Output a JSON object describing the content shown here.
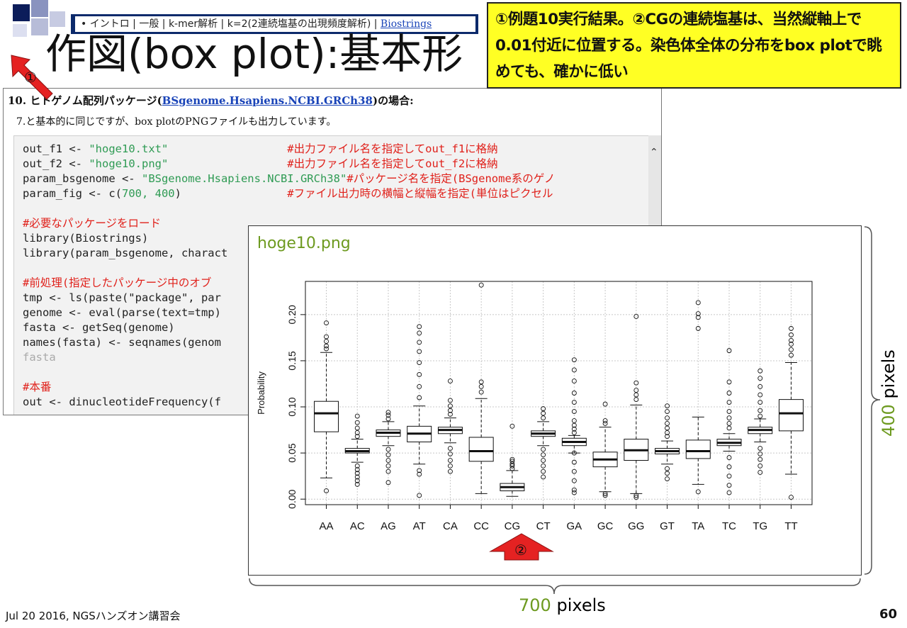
{
  "nav": {
    "items_text": "• イントロ | 一般 | k-mer解析 | k=2(2連続塩基の出現頻度解析) | ",
    "link_text": "Biostrings"
  },
  "slide_title": "作図(box plot):基本形",
  "callout_text": "①例題10実行結果。②CGの連続塩基は、当然縦軸上で0.01付近に位置する。染色体全体の分布をbox plotで眺めても、確かに低い",
  "doc": {
    "heading_prefix": "10. ヒトゲノム配列パッケージ(",
    "heading_link": "BSgenome.Hsapiens.NCBI.GRCh38",
    "heading_suffix": ")の場合:",
    "description": "7.と基本的に同じですが、box plotのPNGファイルも出力しています。",
    "code_lines": [
      [
        "out_f1 <- ",
        "\"hoge10.txt\"",
        "                  #出力ファイル名を指定してout_f1に格納"
      ],
      [
        "out_f2 <- ",
        "\"hoge10.png\"",
        "                  #出力ファイル名を指定してout_f2に格納"
      ],
      [
        "param_bsgenome <- ",
        "\"BSgenome.Hsapiens.NCBI.GRCh38\"",
        "#パッケージ名を指定(BSgenome系のゲノ"
      ],
      [
        "param_fig <- c(",
        "700, 400",
        ")                #ファイル出力時の横幅と縦幅を指定(単位はピクセル"
      ],
      [
        "",
        "",
        ""
      ],
      [
        "",
        "",
        "#必要なパッケージをロード"
      ],
      [
        "library(Biostrings)",
        "",
        ""
      ],
      [
        "library(param_bsgenome, charact",
        "",
        ""
      ],
      [
        "",
        "",
        ""
      ],
      [
        "",
        "",
        "#前処理(指定したパッケージ中のオブ"
      ],
      [
        "tmp <- ls(paste(\"package\", par",
        "",
        ""
      ],
      [
        "genome <- eval(parse(text=tmp)",
        "",
        ""
      ],
      [
        "fasta <- getSeq(genome)",
        "",
        ""
      ],
      [
        "names(fasta) <- seqnames(genom",
        "",
        ""
      ],
      [
        "fasta",
        "",
        ""
      ],
      [
        "",
        "",
        ""
      ],
      [
        "",
        "",
        "#本番"
      ],
      [
        "out <- dinucleotideFrequency(f",
        "",
        ""
      ]
    ]
  },
  "chart_filename": "hoge10.png",
  "chart_data": {
    "type": "box",
    "ylabel": "Probability",
    "ylim": [
      -0.006,
      0.236
    ],
    "yticks": [
      0.0,
      0.05,
      0.1,
      0.15,
      0.2
    ],
    "ytick_labels": [
      "0.00",
      "0.05",
      "0.10",
      "0.15",
      "0.20"
    ],
    "grid": true,
    "categories": [
      "AA",
      "AC",
      "AG",
      "AT",
      "CA",
      "CC",
      "CG",
      "CT",
      "GA",
      "GC",
      "GG",
      "GT",
      "TA",
      "TC",
      "TG",
      "TT"
    ],
    "boxes": [
      {
        "min": 0.023,
        "q1": 0.073,
        "median": 0.093,
        "q3": 0.106,
        "max": 0.159,
        "outliers": [
          0.009,
          0.163,
          0.166,
          0.171,
          0.176,
          0.191
        ]
      },
      {
        "min": 0.04,
        "q1": 0.05,
        "median": 0.052,
        "q3": 0.055,
        "max": 0.065,
        "outliers": [
          0.016,
          0.02,
          0.024,
          0.028,
          0.032,
          0.036,
          0.068,
          0.072,
          0.077,
          0.083,
          0.09
        ]
      },
      {
        "min": 0.058,
        "q1": 0.068,
        "median": 0.072,
        "q3": 0.075,
        "max": 0.084,
        "outliers": [
          0.018,
          0.03,
          0.036,
          0.042,
          0.048,
          0.054,
          0.087,
          0.091,
          0.094
        ]
      },
      {
        "min": 0.038,
        "q1": 0.062,
        "median": 0.071,
        "q3": 0.079,
        "max": 0.101,
        "outliers": [
          0.004,
          0.027,
          0.031,
          0.11,
          0.122,
          0.135,
          0.148,
          0.16,
          0.17,
          0.18,
          0.187
        ]
      },
      {
        "min": 0.061,
        "q1": 0.071,
        "median": 0.075,
        "q3": 0.078,
        "max": 0.088,
        "outliers": [
          0.03,
          0.036,
          0.042,
          0.049,
          0.055,
          0.092,
          0.096,
          0.101,
          0.107,
          0.128
        ]
      },
      {
        "min": 0.006,
        "q1": 0.041,
        "median": 0.052,
        "q3": 0.067,
        "max": 0.109,
        "outliers": [
          0.116,
          0.122,
          0.127,
          0.232
        ]
      },
      {
        "min": 0.003,
        "q1": 0.009,
        "median": 0.013,
        "q3": 0.017,
        "max": 0.031,
        "outliers": [
          0.033,
          0.036,
          0.038,
          0.041,
          0.043,
          0.079
        ]
      },
      {
        "min": 0.058,
        "q1": 0.068,
        "median": 0.071,
        "q3": 0.074,
        "max": 0.084,
        "outliers": [
          0.024,
          0.03,
          0.036,
          0.042,
          0.048,
          0.054,
          0.088,
          0.093,
          0.098
        ]
      },
      {
        "min": 0.05,
        "q1": 0.058,
        "median": 0.062,
        "q3": 0.066,
        "max": 0.069,
        "outliers": [
          0.007,
          0.01,
          0.02,
          0.03,
          0.04,
          0.05,
          0.072,
          0.076,
          0.08,
          0.085,
          0.095,
          0.105,
          0.115,
          0.128,
          0.14,
          0.151
        ]
      },
      {
        "min": 0.008,
        "q1": 0.035,
        "median": 0.043,
        "q3": 0.051,
        "max": 0.078,
        "outliers": [
          0.004,
          0.006,
          0.082,
          0.085,
          0.103
        ]
      },
      {
        "min": 0.006,
        "q1": 0.042,
        "median": 0.053,
        "q3": 0.065,
        "max": 0.102,
        "outliers": [
          0.002,
          0.004,
          0.108,
          0.113,
          0.118,
          0.126,
          0.198
        ]
      },
      {
        "min": 0.038,
        "q1": 0.049,
        "median": 0.052,
        "q3": 0.055,
        "max": 0.063,
        "outliers": [
          0.022,
          0.028,
          0.033,
          0.068,
          0.072,
          0.077,
          0.082,
          0.088,
          0.095,
          0.101
        ]
      },
      {
        "min": 0.016,
        "q1": 0.044,
        "median": 0.052,
        "q3": 0.064,
        "max": 0.089,
        "outliers": [
          0.008,
          0.185,
          0.197,
          0.201,
          0.213
        ]
      },
      {
        "min": 0.052,
        "q1": 0.058,
        "median": 0.061,
        "q3": 0.065,
        "max": 0.071,
        "outliers": [
          0.007,
          0.015,
          0.025,
          0.035,
          0.045,
          0.077,
          0.082,
          0.088,
          0.095,
          0.105,
          0.115,
          0.127,
          0.161
        ]
      },
      {
        "min": 0.062,
        "q1": 0.071,
        "median": 0.075,
        "q3": 0.078,
        "max": 0.087,
        "outliers": [
          0.029,
          0.036,
          0.043,
          0.049,
          0.055,
          0.09,
          0.096,
          0.105,
          0.113,
          0.122,
          0.131,
          0.139
        ]
      },
      {
        "min": 0.027,
        "q1": 0.074,
        "median": 0.093,
        "q3": 0.108,
        "max": 0.148,
        "outliers": [
          0.002,
          0.156,
          0.162,
          0.168,
          0.172,
          0.178,
          0.185
        ]
      }
    ]
  },
  "annotations": {
    "marker_1": "①",
    "marker_2": "②",
    "height_num": "400",
    "height_unit": "pixels",
    "width_num": "700",
    "width_unit": "pixels"
  },
  "footer": "Jul 20 2016, NGSハンズオン講習会",
  "page_number": "60"
}
